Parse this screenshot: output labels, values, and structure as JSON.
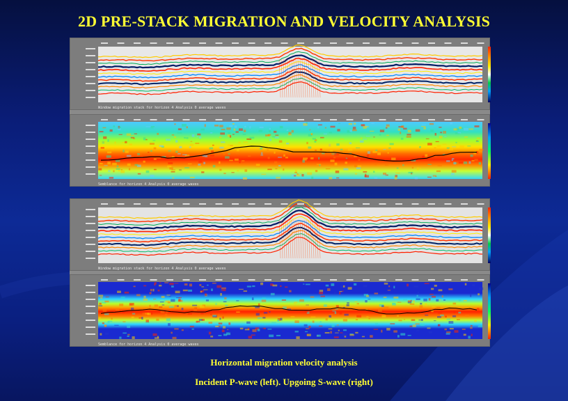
{
  "slide": {
    "title": "2D PRE-STACK MIGRATION AND VELOCITY ANALYSIS",
    "caption_line1": "Horizontal migration velocity analysis",
    "caption_line2": "Incident P-wave (left).  Upgoing S-wave (right)"
  },
  "colors": {
    "title": "#ffff33",
    "caption": "#ffff33",
    "background": "#0d2a96",
    "panel": "#7d7d7d"
  },
  "panels": [
    {
      "name": "p-wave-migration-stack",
      "kind": "stack",
      "footer": "Window migration stack for horizon 4    Analysis 0 average waves"
    },
    {
      "name": "p-wave-semblance",
      "kind": "semblance",
      "footer": "Semblance for horizon 4    Analysis 0 average waves"
    },
    {
      "name": "s-wave-migration-stack",
      "kind": "stack",
      "footer": "Window migration stack for horizon 4    Analysis 0 average waves"
    },
    {
      "name": "s-wave-semblance",
      "kind": "semblance",
      "footer": "Semblance for horizon 4    Analysis 0 average waves"
    }
  ]
}
